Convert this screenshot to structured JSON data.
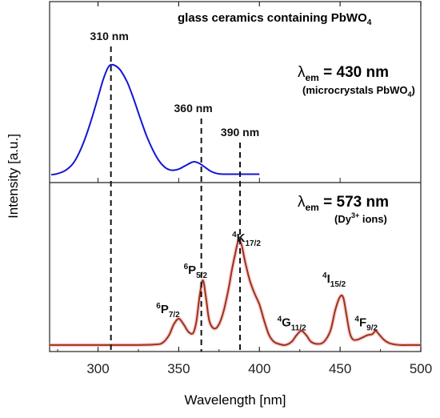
{
  "chart_data": {
    "type": "line",
    "xlabel": "Wavelength [nm]",
    "ylabel": "Intensity [a.u.]",
    "xlim": [
      270,
      500
    ],
    "xticks": [
      300,
      350,
      400,
      450,
      500
    ],
    "title_parts": {
      "main": "glass ceramics containing PbWO",
      "sub": "4"
    },
    "vlines": [
      {
        "x": 308,
        "label": "310 nm"
      },
      {
        "x": 364,
        "label": "360 nm"
      },
      {
        "x": 388,
        "label": "390 nm"
      }
    ],
    "panels": [
      {
        "name": "top",
        "lambda": {
          "symbol": "λ",
          "sub": "em",
          "value": " = 430 nm"
        },
        "note": {
          "main": "(microcrystals PbWO",
          "sub": "4",
          "tail": ")"
        },
        "color": "#1515d6",
        "series": [
          {
            "x": [
              271,
              275,
              280,
              285,
              290,
              295,
              300,
              303,
              306,
              308,
              311,
              314,
              318,
              322,
              326,
              330,
              334,
              338,
              342,
              346,
              350,
              354,
              358,
              360,
              363,
              366,
              370,
              374,
              378,
              382,
              386,
              390,
              395,
              400
            ],
            "y": [
              0.02,
              0.03,
              0.06,
              0.13,
              0.27,
              0.47,
              0.71,
              0.86,
              0.97,
              1.0,
              0.99,
              0.95,
              0.85,
              0.7,
              0.53,
              0.37,
              0.24,
              0.14,
              0.08,
              0.06,
              0.07,
              0.1,
              0.13,
              0.135,
              0.12,
              0.09,
              0.05,
              0.03,
              0.025,
              0.025,
              0.025,
              0.025,
              0.025,
              0.025
            ]
          }
        ]
      },
      {
        "name": "bottom",
        "lambda": {
          "symbol": "λ",
          "sub": "em",
          "value": " = 573 nm"
        },
        "note": {
          "main": "(Dy",
          "sup": "3+",
          "tail": " ions)"
        },
        "color": "#9a3412",
        "series": [
          {
            "x": [
              270,
              300,
              320,
              335,
              340,
              344,
              347,
              350,
              353,
              356,
              359,
              361,
              363,
              365,
              367,
              369,
              372,
              375,
              378,
              381,
              383,
              385,
              387,
              389,
              391,
              394,
              397,
              400,
              403,
              406,
              409,
              412,
              416,
              420,
              423,
              426,
              429,
              432,
              436,
              440,
              444,
              447,
              450,
              452,
              454,
              456,
              458,
              461,
              464,
              467,
              470,
              472,
              474,
              477,
              480,
              484,
              488,
              492,
              496,
              500
            ],
            "y": [
              0.03,
              0.03,
              0.03,
              0.035,
              0.05,
              0.12,
              0.22,
              0.27,
              0.22,
              0.15,
              0.14,
              0.25,
              0.48,
              0.62,
              0.45,
              0.25,
              0.18,
              0.22,
              0.35,
              0.55,
              0.72,
              0.86,
              0.98,
              0.94,
              0.8,
              0.62,
              0.5,
              0.4,
              0.25,
              0.12,
              0.06,
              0.04,
              0.03,
              0.06,
              0.12,
              0.16,
              0.12,
              0.06,
              0.04,
              0.06,
              0.16,
              0.35,
              0.47,
              0.46,
              0.3,
              0.14,
              0.08,
              0.08,
              0.1,
              0.12,
              0.13,
              0.16,
              0.13,
              0.08,
              0.05,
              0.035,
              0.03,
              0.03,
              0.03,
              0.03
            ]
          }
        ]
      }
    ],
    "peak_labels": [
      {
        "base": "6",
        "letter": "P",
        "sub": "7/2",
        "x": 343,
        "y": 0.32
      },
      {
        "base": "6",
        "letter": "P",
        "sub": "5/2",
        "x": 360,
        "y": 0.68
      },
      {
        "base": "4",
        "letter": "K",
        "sub": "17/2",
        "x": 390,
        "y": 0.97
      },
      {
        "base": "4",
        "letter": "G",
        "sub": "11/2",
        "x": 418,
        "y": 0.2
      },
      {
        "base": "4",
        "letter": "I",
        "sub": "15/2",
        "x": 446,
        "y": 0.6
      },
      {
        "base": "4",
        "letter": "F",
        "sub": "9/2",
        "x": 466,
        "y": 0.2
      }
    ]
  }
}
